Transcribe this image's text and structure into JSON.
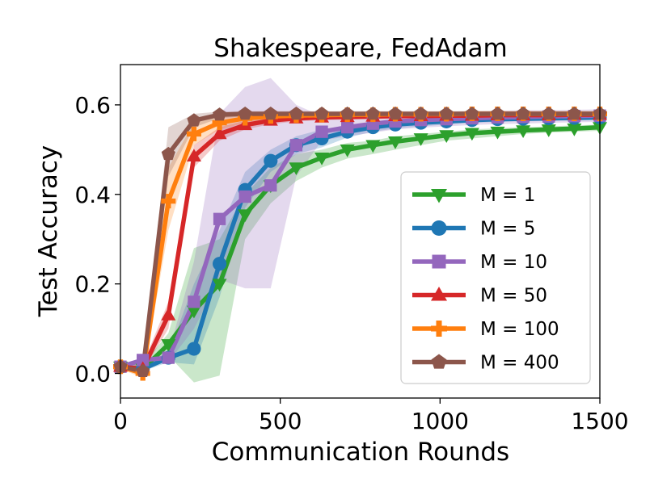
{
  "chart_data": {
    "type": "line",
    "title": "Shakespeare, FedAdam",
    "xlabel": "Communication Rounds",
    "ylabel": "Test Accuracy",
    "xlim": [
      0,
      1500
    ],
    "ylim": [
      -0.055,
      0.69
    ],
    "xticks": [
      0,
      500,
      1000,
      1500
    ],
    "yticks": [
      0.0,
      0.2,
      0.4,
      0.6
    ],
    "grid": false,
    "legend_position": "center-right",
    "series": [
      {
        "name": "M = 1",
        "color": "#2ca02c",
        "marker": "triangle-down",
        "x": [
          0,
          70,
          150,
          230,
          310,
          390,
          470,
          550,
          630,
          710,
          790,
          860,
          940,
          1020,
          1100,
          1180,
          1260,
          1340,
          1420,
          1500
        ],
        "y": [
          0.015,
          0.01,
          0.065,
          0.14,
          0.2,
          0.355,
          0.42,
          0.46,
          0.482,
          0.5,
          0.51,
          0.518,
          0.525,
          0.532,
          0.537,
          0.54,
          0.543,
          0.545,
          0.547,
          0.55
        ],
        "band_upper": [
          0.02,
          0.02,
          0.09,
          0.28,
          0.3,
          0.4,
          0.46,
          0.49,
          0.5,
          0.515,
          0.52,
          0.53,
          0.535,
          0.54,
          0.545,
          0.548,
          0.55,
          0.552,
          0.554,
          0.556
        ],
        "band_lower": [
          0.01,
          0.005,
          0.04,
          -0.02,
          -0.005,
          0.3,
          0.38,
          0.43,
          0.46,
          0.48,
          0.49,
          0.5,
          0.51,
          0.52,
          0.525,
          0.53,
          0.535,
          0.538,
          0.54,
          0.542
        ]
      },
      {
        "name": "M = 5",
        "color": "#1f77b4",
        "marker": "circle",
        "x": [
          0,
          70,
          150,
          230,
          310,
          390,
          470,
          550,
          630,
          710,
          790,
          860,
          940,
          1020,
          1100,
          1180,
          1260,
          1340,
          1420,
          1500
        ],
        "y": [
          0.015,
          0.01,
          0.035,
          0.055,
          0.245,
          0.41,
          0.475,
          0.51,
          0.525,
          0.54,
          0.55,
          0.556,
          0.56,
          0.563,
          0.566,
          0.568,
          0.569,
          0.57,
          0.571,
          0.572
        ],
        "band_upper": [
          0.02,
          0.02,
          0.045,
          0.2,
          0.32,
          0.45,
          0.5,
          0.53,
          0.545,
          0.553,
          0.56,
          0.565,
          0.568,
          0.57,
          0.572,
          0.574,
          0.575,
          0.576,
          0.577,
          0.578
        ],
        "band_lower": [
          0.01,
          0.005,
          0.025,
          0.02,
          0.17,
          0.37,
          0.45,
          0.49,
          0.505,
          0.527,
          0.54,
          0.547,
          0.552,
          0.556,
          0.56,
          0.562,
          0.563,
          0.564,
          0.565,
          0.566
        ]
      },
      {
        "name": "M = 10",
        "color": "#9467bd",
        "marker": "square",
        "x": [
          0,
          70,
          150,
          230,
          310,
          390,
          470,
          550,
          630,
          710,
          790,
          860,
          940,
          1020,
          1100,
          1180,
          1260,
          1340,
          1420,
          1500
        ],
        "y": [
          0.015,
          0.03,
          0.035,
          0.16,
          0.345,
          0.395,
          0.42,
          0.51,
          0.54,
          0.55,
          0.558,
          0.563,
          0.566,
          0.568,
          0.57,
          0.572,
          0.573,
          0.574,
          0.575,
          0.576
        ],
        "band_upper": [
          0.02,
          0.035,
          0.045,
          0.25,
          0.58,
          0.64,
          0.66,
          0.6,
          0.575,
          0.575,
          0.58,
          0.582,
          0.584,
          0.585,
          0.586,
          0.587,
          0.588,
          0.588,
          0.589,
          0.59
        ],
        "band_lower": [
          0.01,
          0.025,
          0.025,
          0.1,
          0.21,
          0.19,
          0.19,
          0.44,
          0.52,
          0.53,
          0.538,
          0.545,
          0.549,
          0.552,
          0.555,
          0.557,
          0.558,
          0.56,
          0.561,
          0.562
        ]
      },
      {
        "name": "M = 50",
        "color": "#d62728",
        "marker": "triangle-up",
        "x": [
          0,
          70,
          150,
          230,
          310,
          390,
          470,
          550,
          630,
          710,
          790,
          860,
          940,
          1020,
          1100,
          1180,
          1260,
          1340,
          1420,
          1500
        ],
        "y": [
          0.015,
          0.01,
          0.13,
          0.485,
          0.535,
          0.555,
          0.565,
          0.57,
          0.572,
          0.573,
          0.574,
          0.575,
          0.575,
          0.576,
          0.576,
          0.577,
          0.577,
          0.577,
          0.578,
          0.578
        ],
        "band_upper": [
          0.02,
          0.02,
          0.16,
          0.51,
          0.55,
          0.565,
          0.573,
          0.577,
          0.578,
          0.579,
          0.58,
          0.58,
          0.581,
          0.581,
          0.582,
          0.582,
          0.582,
          0.583,
          0.583,
          0.583
        ],
        "band_lower": [
          0.01,
          0.005,
          0.1,
          0.46,
          0.52,
          0.545,
          0.557,
          0.563,
          0.566,
          0.567,
          0.568,
          0.569,
          0.57,
          0.57,
          0.571,
          0.571,
          0.572,
          0.572,
          0.572,
          0.573
        ]
      },
      {
        "name": "M = 100",
        "color": "#ff7f0e",
        "marker": "plus",
        "x": [
          0,
          70,
          150,
          230,
          310,
          390,
          470,
          550,
          630,
          710,
          790,
          860,
          940,
          1020,
          1100,
          1180,
          1260,
          1340,
          1420,
          1500
        ],
        "y": [
          0.015,
          0.0,
          0.385,
          0.535,
          0.56,
          0.57,
          0.574,
          0.576,
          0.577,
          0.578,
          0.578,
          0.579,
          0.579,
          0.579,
          0.58,
          0.58,
          0.58,
          0.58,
          0.58,
          0.58
        ],
        "band_upper": [
          0.02,
          0.01,
          0.46,
          0.56,
          0.575,
          0.58,
          0.582,
          0.583,
          0.584,
          0.584,
          0.585,
          0.585,
          0.585,
          0.585,
          0.586,
          0.586,
          0.586,
          0.586,
          0.586,
          0.586
        ],
        "band_lower": [
          0.01,
          -0.01,
          0.32,
          0.51,
          0.545,
          0.56,
          0.566,
          0.569,
          0.57,
          0.572,
          0.572,
          0.573,
          0.573,
          0.573,
          0.574,
          0.574,
          0.574,
          0.574,
          0.574,
          0.574
        ]
      },
      {
        "name": "M = 400",
        "color": "#8c564b",
        "marker": "pentagon",
        "x": [
          0,
          70,
          150,
          230,
          310,
          390,
          470,
          550,
          630,
          710,
          790,
          860,
          940,
          1020,
          1100,
          1180,
          1260,
          1340,
          1420,
          1500
        ],
        "y": [
          0.015,
          0.005,
          0.49,
          0.565,
          0.578,
          0.58,
          0.58,
          0.58,
          0.58,
          0.58,
          0.58,
          0.58,
          0.58,
          0.58,
          0.58,
          0.58,
          0.58,
          0.58,
          0.58,
          0.58
        ],
        "band_upper": [
          0.02,
          0.015,
          0.55,
          0.58,
          0.585,
          0.586,
          0.586,
          0.586,
          0.586,
          0.586,
          0.586,
          0.586,
          0.586,
          0.586,
          0.586,
          0.586,
          0.586,
          0.586,
          0.586,
          0.586
        ],
        "band_lower": [
          0.01,
          -0.005,
          0.44,
          0.55,
          0.57,
          0.574,
          0.574,
          0.574,
          0.574,
          0.574,
          0.574,
          0.574,
          0.574,
          0.574,
          0.574,
          0.574,
          0.574,
          0.574,
          0.574,
          0.574
        ]
      }
    ]
  }
}
